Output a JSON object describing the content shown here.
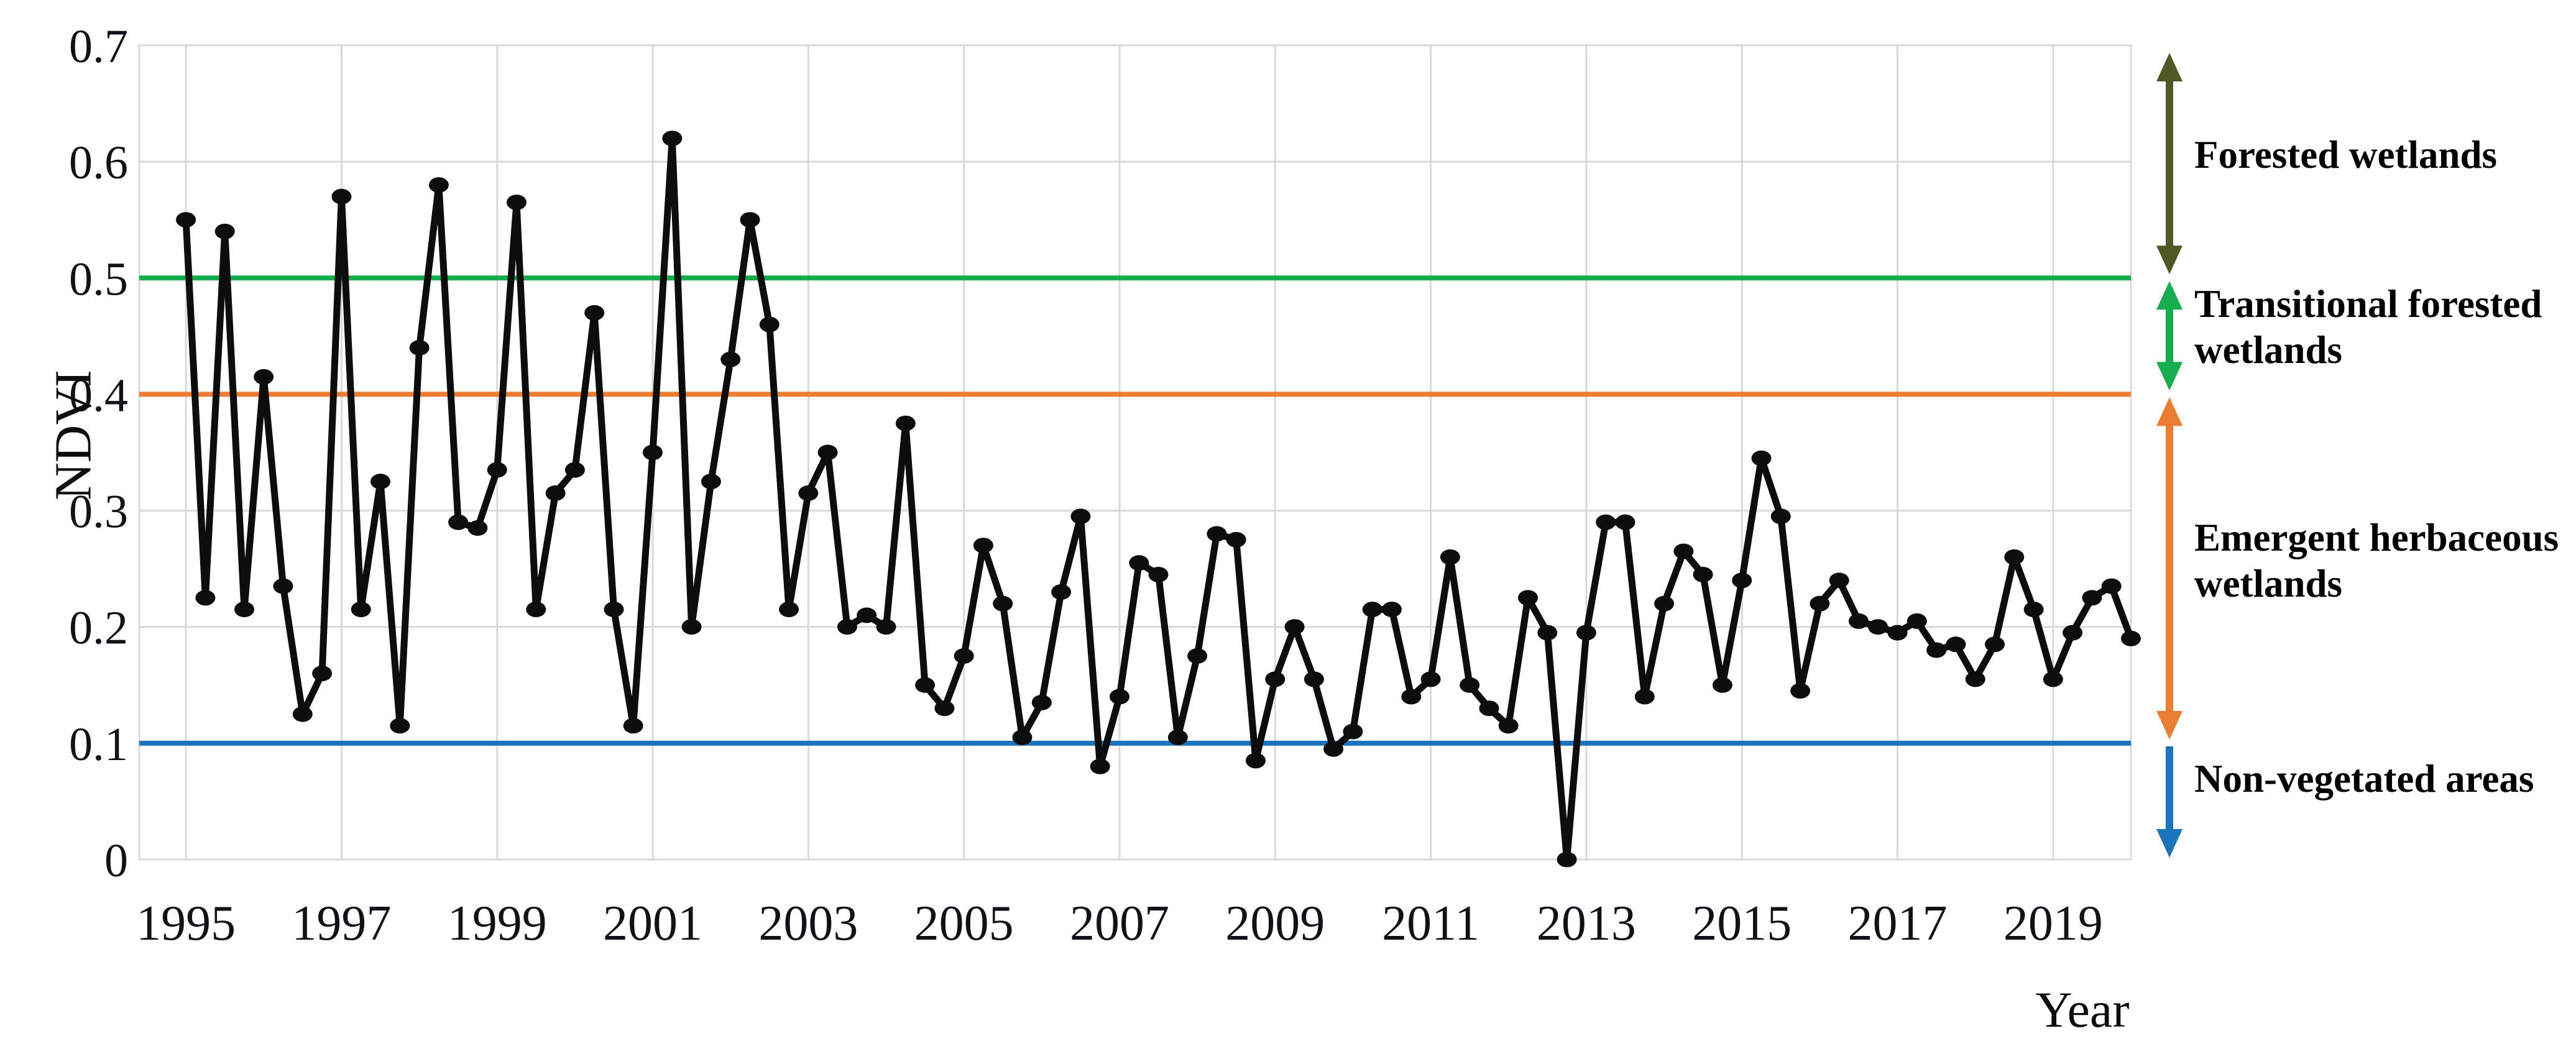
{
  "chart_data": {
    "type": "line",
    "title": "",
    "ylabel": "NDVI",
    "xlabel": "Year",
    "ylim": [
      0,
      0.7
    ],
    "xlim": [
      1994.4,
      2020.0
    ],
    "grid": true,
    "y_ticks": [
      0.7,
      0.6,
      0.5,
      0.4,
      0.3,
      0.2,
      0.1,
      0
    ],
    "y_tick_labels": [
      "0.7",
      "0.6",
      "0.5",
      "0.4",
      "0.3",
      "0.2",
      "0.1",
      "0"
    ],
    "x_tick_years": [
      1995,
      1997,
      1999,
      2001,
      2003,
      2005,
      2007,
      2009,
      2011,
      2013,
      2015,
      2017,
      2019
    ],
    "x_tick_labels": [
      "1995",
      "1997",
      "1999",
      "2001",
      "2003",
      "2005",
      "2007",
      "2009",
      "2011",
      "2013",
      "2015",
      "2017",
      "2019"
    ],
    "series": [
      {
        "name": "NDVI",
        "color": "#0d0d0d",
        "marker": "ellipse",
        "x_start": 1995.0,
        "x_step": 0.25,
        "values": [
          0.55,
          0.225,
          0.54,
          0.215,
          0.415,
          0.235,
          0.125,
          0.16,
          0.57,
          0.215,
          0.325,
          0.115,
          0.44,
          0.58,
          0.29,
          0.285,
          0.335,
          0.565,
          0.215,
          0.315,
          0.335,
          0.47,
          0.215,
          0.115,
          0.35,
          0.62,
          0.2,
          0.325,
          0.43,
          0.55,
          0.46,
          0.215,
          0.315,
          0.35,
          0.2,
          0.21,
          0.2,
          0.375,
          0.15,
          0.13,
          0.175,
          0.27,
          0.22,
          0.105,
          0.135,
          0.23,
          0.295,
          0.08,
          0.14,
          0.255,
          0.245,
          0.105,
          0.175,
          0.28,
          0.275,
          0.085,
          0.155,
          0.2,
          0.155,
          0.095,
          0.11,
          0.215,
          0.215,
          0.14,
          0.155,
          0.26,
          0.15,
          0.13,
          0.115,
          0.225,
          0.195,
          0.0,
          0.195,
          0.29,
          0.29,
          0.14,
          0.22,
          0.265,
          0.245,
          0.15,
          0.24,
          0.345,
          0.295,
          0.145,
          0.22,
          0.24,
          0.205,
          0.2,
          0.195,
          0.205,
          0.18,
          0.185,
          0.155,
          0.185,
          0.26,
          0.215,
          0.155,
          0.195,
          0.225,
          0.235,
          0.19
        ]
      }
    ],
    "threshold_lines": [
      {
        "value": 0.5,
        "color": "#16ad4e"
      },
      {
        "value": 0.4,
        "color": "#ed7d31"
      },
      {
        "value": 0.1,
        "color": "#1c75bc"
      }
    ],
    "zones": [
      {
        "lines": [
          "Forested wetlands"
        ],
        "range": [
          0.5,
          0.7
        ],
        "color": "#4e5a26",
        "arrowheads": "both"
      },
      {
        "lines": [
          "Transitional forested",
          "wetlands"
        ],
        "range": [
          0.4,
          0.5
        ],
        "color": "#16ad4e",
        "arrowheads": "both"
      },
      {
        "lines": [
          "Emergent herbaceous",
          "wetlands"
        ],
        "range": [
          0.1,
          0.4
        ],
        "color": "#ed7d31",
        "arrowheads": "both"
      },
      {
        "lines": [
          "Non-vegetated areas"
        ],
        "range": [
          0,
          0.1
        ],
        "color": "#1c75bc",
        "arrowheads": "down"
      }
    ],
    "axis_text_color": "#111118",
    "grid_color": "#d9d9d9"
  }
}
